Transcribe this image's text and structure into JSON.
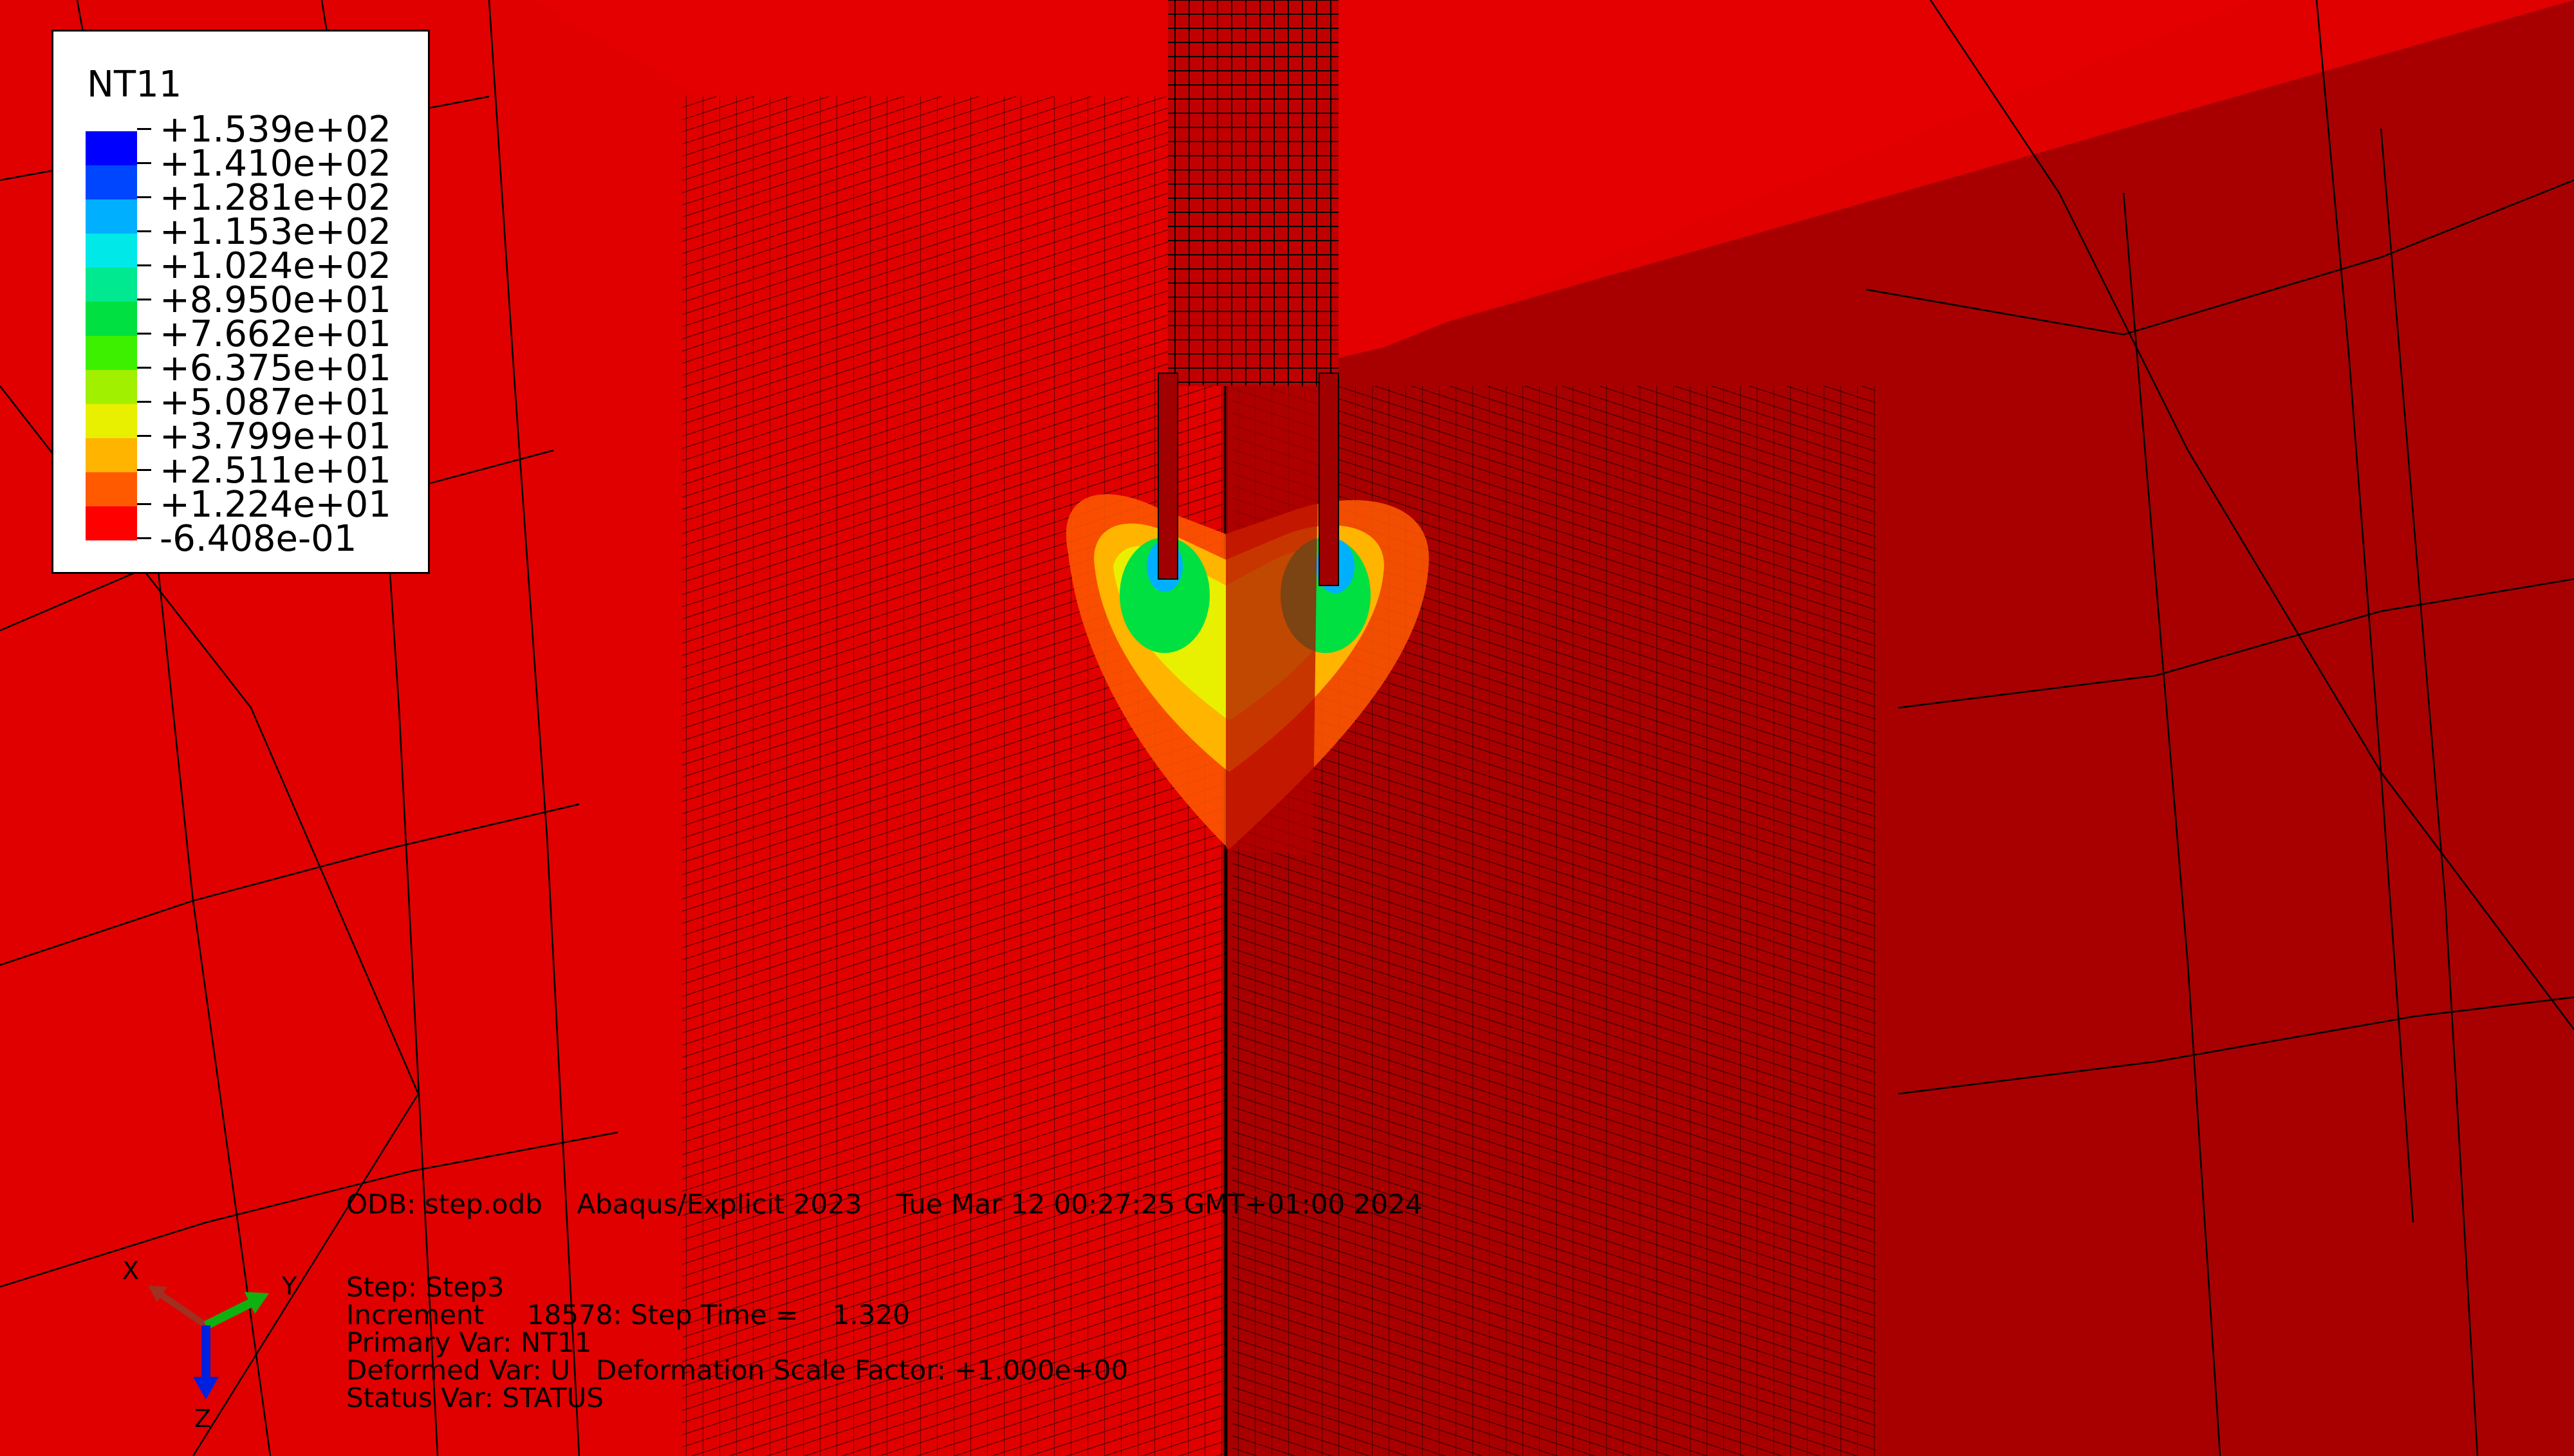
{
  "legend": {
    "title": "NT11",
    "colors": [
      "#0000ff",
      "#0046ff",
      "#00b0ff",
      "#00e8e8",
      "#00e890",
      "#00e040",
      "#3cf000",
      "#a0f000",
      "#e8f000",
      "#ffb400",
      "#ff5a00",
      "#ff0000"
    ],
    "ticks": [
      "+1.539e+02",
      "+1.410e+02",
      "+1.281e+02",
      "+1.153e+02",
      "+1.024e+02",
      "+8.950e+01",
      "+7.662e+01",
      "+6.375e+01",
      "+5.087e+01",
      "+3.799e+01",
      "+2.511e+01",
      "+1.224e+01",
      "-6.408e-01"
    ]
  },
  "info": {
    "odb_line": "ODB: step.odb    Abaqus/Explicit 2023    Tue Mar 12 00:27:25 GMT+01:00 2024",
    "step_line": "Step: Step3",
    "increment_line": "Increment     18578: Step Time =    1.320",
    "primary_var_line": "Primary Var: NT11",
    "deformed_var_line": "Deformed Var: U   Deformation Scale Factor: +1.000e+00",
    "status_var_line": "Status Var: STATUS"
  },
  "triad": {
    "x_label": "X",
    "y_label": "Y",
    "z_label": "Z"
  },
  "colors": {
    "background_face": "#e00000",
    "shaded_face": "#a80000",
    "mesh_line": "#000000"
  }
}
